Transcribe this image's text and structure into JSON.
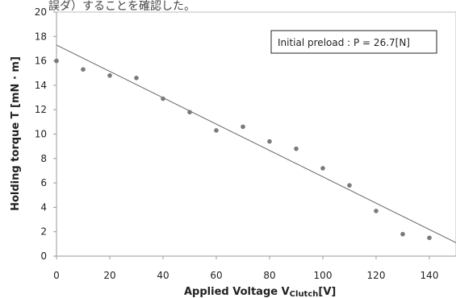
{
  "header_fragment": "誤ダ）することを確認した。",
  "chart_data": {
    "type": "scatter",
    "title": "",
    "xlabel": "Applied Voltage V",
    "xlabel_subscript": "Clutch",
    "xlabel_unit": "[V]",
    "ylabel": "Holding torque T [mN · m]",
    "xlim": [
      0,
      150
    ],
    "ylim": [
      0,
      20
    ],
    "x_ticks": [
      0,
      20,
      40,
      60,
      80,
      100,
      120,
      140
    ],
    "y_ticks": [
      0,
      2,
      4,
      6,
      8,
      10,
      12,
      14,
      16,
      18,
      20
    ],
    "grid": false,
    "series": [
      {
        "x": [
          0,
          10,
          20,
          30,
          40,
          50,
          60,
          70,
          80,
          90,
          100,
          110,
          120,
          130,
          140
        ],
        "y": [
          16.0,
          15.3,
          14.8,
          14.6,
          12.9,
          11.8,
          10.3,
          10.6,
          9.4,
          8.8,
          7.2,
          5.8,
          3.7,
          1.8,
          1.5
        ],
        "marker_color": "#7a7a7a"
      }
    ],
    "trendline": {
      "x": [
        0,
        150
      ],
      "y": [
        17.3,
        1.1
      ],
      "color": "#666666"
    },
    "annotation": "Initial preload : P = 26.7[N]"
  }
}
